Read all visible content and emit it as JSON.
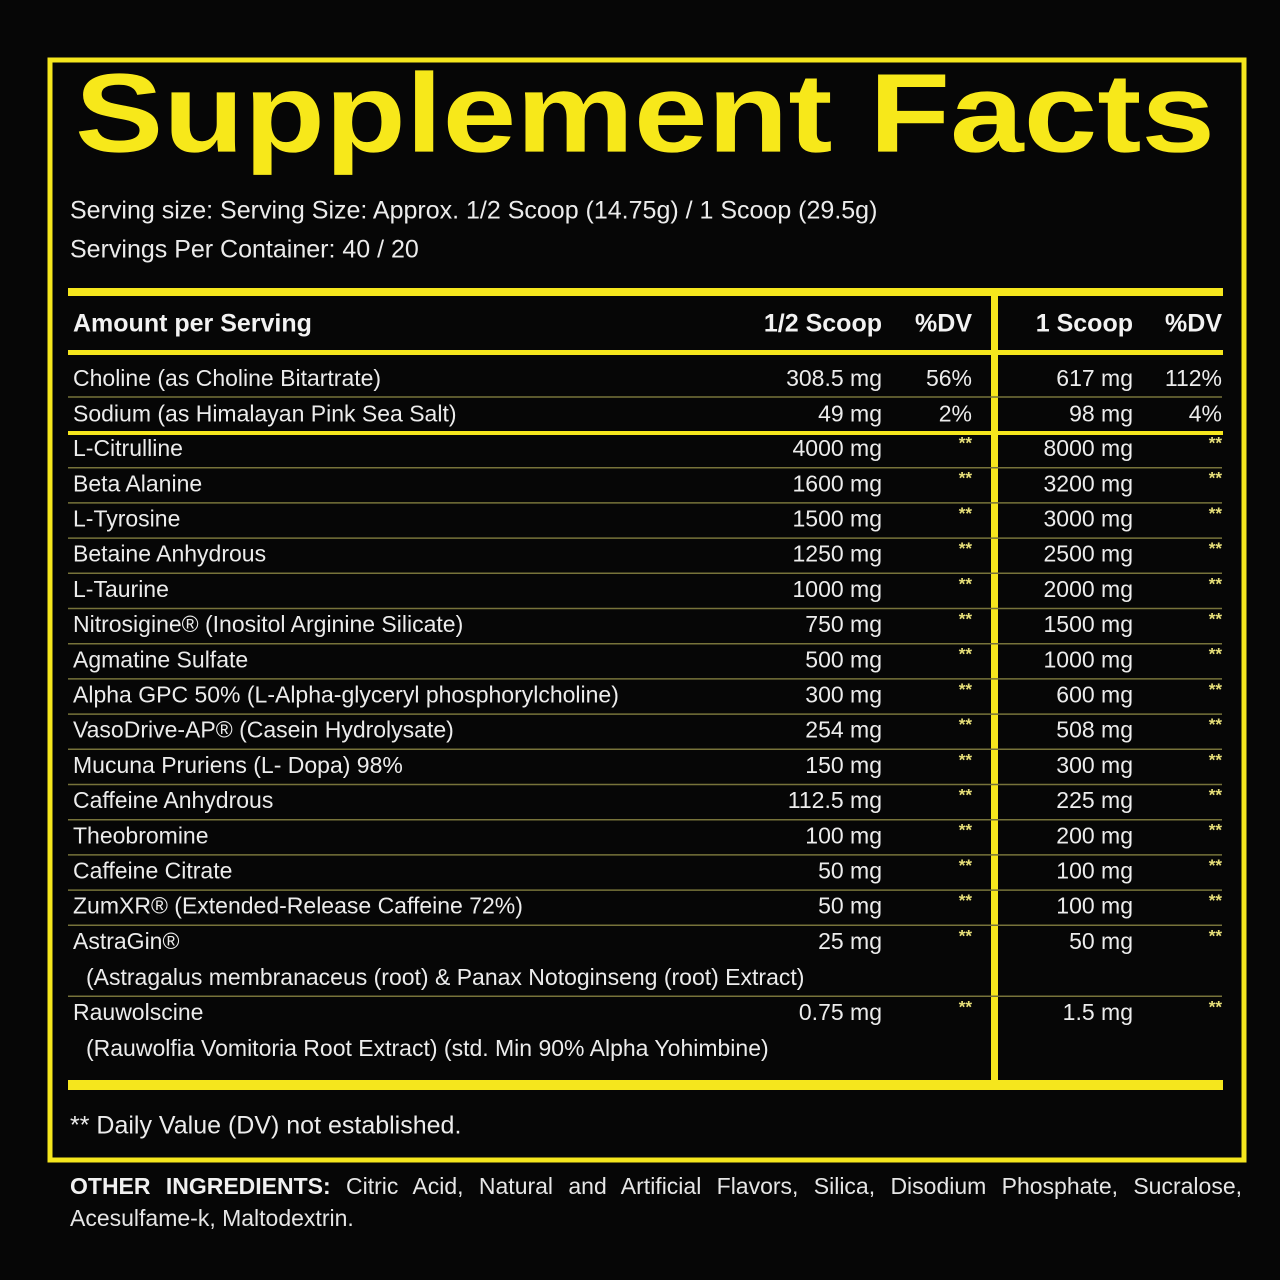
{
  "title": "Supplement Facts",
  "serving_size": "Serving size: Serving Size: Approx. 1/2 Scoop (14.75g) / 1 Scoop (29.5g)",
  "servings_per_container": "Servings Per Container: 40 / 20",
  "table": {
    "header": [
      "Amount per Serving",
      "1/2 Scoop",
      "%DV",
      "1 Scoop",
      "%DV"
    ],
    "rows": [
      {
        "name": "Choline (as Choline Bitartrate)",
        "half": "308.5 mg",
        "half_dv": "56%",
        "full": "617 mg",
        "full_dv": "112%"
      },
      {
        "name": "Sodium (as Himalayan Pink Sea Salt)",
        "half": "49 mg",
        "half_dv": "2%",
        "full": "98 mg",
        "full_dv": "4%"
      },
      {
        "name": "L-Citrulline",
        "half": "4000 mg",
        "half_dv": "**",
        "full": "8000 mg",
        "full_dv": "**"
      },
      {
        "name": "Beta Alanine",
        "half": "1600 mg",
        "half_dv": "**",
        "full": "3200 mg",
        "full_dv": "**"
      },
      {
        "name": "L-Tyrosine",
        "half": "1500 mg",
        "half_dv": "**",
        "full": "3000 mg",
        "full_dv": "**"
      },
      {
        "name": "Betaine Anhydrous",
        "half": "1250 mg",
        "half_dv": "**",
        "full": "2500 mg",
        "full_dv": "**"
      },
      {
        "name": "L-Taurine",
        "half": "1000 mg",
        "half_dv": "**",
        "full": "2000 mg",
        "full_dv": "**"
      },
      {
        "name": "Nitrosigine® (Inositol Arginine Silicate)",
        "half": "750 mg",
        "half_dv": "**",
        "full": "1500 mg",
        "full_dv": "**"
      },
      {
        "name": "Agmatine Sulfate",
        "half": "500 mg",
        "half_dv": "**",
        "full": "1000 mg",
        "full_dv": "**"
      },
      {
        "name": "Alpha GPC 50% (L-Alpha-glyceryl phosphorylcholine)",
        "half": "300 mg",
        "half_dv": "**",
        "full": "600 mg",
        "full_dv": "**"
      },
      {
        "name": "VasoDrive-AP® (Casein Hydrolysate)",
        "half": "254 mg",
        "half_dv": "**",
        "full": "508 mg",
        "full_dv": "**"
      },
      {
        "name": "Mucuna Pruriens (L- Dopa) 98%",
        "half": "150 mg",
        "half_dv": "**",
        "full": "300 mg",
        "full_dv": "**"
      },
      {
        "name": "Caffeine Anhydrous",
        "half": "112.5 mg",
        "half_dv": "**",
        "full": "225 mg",
        "full_dv": "**"
      },
      {
        "name": "Theobromine",
        "half": "100 mg",
        "half_dv": "**",
        "full": "200 mg",
        "full_dv": "**"
      },
      {
        "name": "Caffeine Citrate",
        "half": "50 mg",
        "half_dv": "**",
        "full": "100 mg",
        "full_dv": "**"
      },
      {
        "name": "ZumXR® (Extended-Release Caffeine 72%)",
        "half": "50 mg",
        "half_dv": "**",
        "full": "100 mg",
        "full_dv": "**"
      },
      {
        "name": "AstraGin®",
        "sub": "(Astragalus membranaceus (root) & Panax Notoginseng (root) Extract)",
        "half": "25 mg",
        "half_dv": "**",
        "full": "50 mg",
        "full_dv": "**"
      },
      {
        "name": "Rauwolscine",
        "sub": "(Rauwolfia Vomitoria Root Extract) (std. Min 90% Alpha Yohimbine)",
        "half": "0.75 mg",
        "half_dv": "**",
        "full": "1.5 mg",
        "full_dv": "**"
      }
    ]
  },
  "footnote": "** Daily Value (DV) not established.",
  "other_ingredients": {
    "label": "OTHER INGREDIENTS:",
    "text": "Citric Acid, Natural and Artificial Flavors, Silica, Disodium Phosphate, Sucralose, Acesulfame-k, Maltodextrin."
  }
}
